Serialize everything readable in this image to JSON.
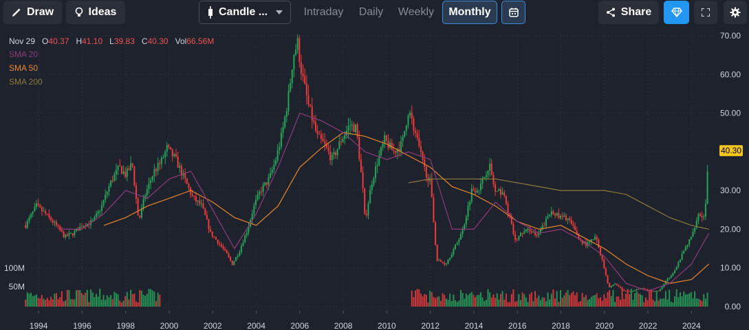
{
  "toolbar": {
    "draw_label": "Draw",
    "ideas_label": "Ideas",
    "chart_type_label": "Candle ...",
    "intervals": [
      "Intraday",
      "Daily",
      "Weekly",
      "Monthly"
    ],
    "active_interval": "Monthly",
    "share_label": "Share"
  },
  "ohlc": {
    "date": "Nov 29",
    "o_label": "O",
    "o": "40.37",
    "h_label": "H",
    "h": "41.10",
    "l_label": "L",
    "l": "39.83",
    "c_label": "C",
    "c": "40.30",
    "vol_label": "Vol",
    "vol": "66.56M"
  },
  "indicators": [
    {
      "name": "SMA 20",
      "color": "#8e3b7a"
    },
    {
      "name": "SMA 50",
      "color": "#e8862a"
    },
    {
      "name": "SMA 200",
      "color": "#8d7a3a"
    }
  ],
  "colors": {
    "background": "#1e222d",
    "up": "#26a65b",
    "down": "#ef3b3b",
    "last_price_tag": "#f5c518",
    "accent_blue": "#2196f3"
  },
  "chart_data": {
    "type": "candlestick",
    "interval": "monthly",
    "last_price": "40.30",
    "y_ticks": [
      "70.00",
      "60.00",
      "50.00",
      "40.00",
      "30.00",
      "20.00",
      "10.00",
      "0.00"
    ],
    "ylim": [
      0,
      70
    ],
    "volume_ticks": [
      "100M",
      "50M"
    ],
    "x_ticks": [
      "1994",
      "1996",
      "1998",
      "2000",
      "2002",
      "2004",
      "2006",
      "2008",
      "2010",
      "2012",
      "2014",
      "2016",
      "2018",
      "2020",
      "2022",
      "2024"
    ],
    "xlim": [
      1993.3,
      2025.0
    ],
    "gap": [
      1999.6,
      2011.1
    ],
    "grid": true,
    "price_path": [
      [
        1993.4,
        21
      ],
      [
        1993.9,
        26
      ],
      [
        1994.3,
        24
      ],
      [
        1994.8,
        21
      ],
      [
        1995.2,
        18
      ],
      [
        1995.6,
        19
      ],
      [
        1996.0,
        21
      ],
      [
        1996.5,
        22
      ],
      [
        1996.9,
        26
      ],
      [
        1997.3,
        32
      ],
      [
        1997.7,
        36
      ],
      [
        1998.0,
        34
      ],
      [
        1998.3,
        37
      ],
      [
        1998.6,
        22
      ],
      [
        1998.9,
        29
      ],
      [
        1999.3,
        35
      ],
      [
        1999.6,
        37
      ],
      [
        1999.9,
        41
      ],
      [
        2000.3,
        38
      ],
      [
        2000.7,
        33
      ],
      [
        2001.1,
        28
      ],
      [
        2001.5,
        26
      ],
      [
        2001.9,
        19
      ],
      [
        2002.2,
        17
      ],
      [
        2002.6,
        14
      ],
      [
        2002.9,
        11
      ],
      [
        2003.2,
        14
      ],
      [
        2003.6,
        20
      ],
      [
        2003.9,
        26
      ],
      [
        2004.2,
        30
      ],
      [
        2004.6,
        33
      ],
      [
        2004.9,
        38
      ],
      [
        2005.2,
        45
      ],
      [
        2005.5,
        55
      ],
      [
        2005.7,
        65
      ],
      [
        2005.9,
        68
      ],
      [
        2006.1,
        60
      ],
      [
        2006.4,
        52
      ],
      [
        2006.8,
        44
      ],
      [
        2007.1,
        42
      ],
      [
        2007.5,
        38
      ],
      [
        2007.9,
        43
      ],
      [
        2008.3,
        47
      ],
      [
        2008.6,
        46
      ],
      [
        2008.9,
        30
      ],
      [
        2009.0,
        22
      ],
      [
        2009.3,
        32
      ],
      [
        2009.6,
        38
      ],
      [
        2009.9,
        43
      ],
      [
        2010.3,
        40
      ],
      [
        2010.7,
        42
      ],
      [
        2011.0,
        51
      ],
      [
        2011.3,
        45
      ],
      [
        2011.7,
        36
      ],
      [
        2012.0,
        32
      ],
      [
        2012.3,
        12
      ],
      [
        2012.7,
        11
      ],
      [
        2013.1,
        15
      ],
      [
        2013.5,
        20
      ],
      [
        2013.9,
        30
      ],
      [
        2014.3,
        31
      ],
      [
        2014.7,
        37
      ],
      [
        2015.0,
        29
      ],
      [
        2015.3,
        30
      ],
      [
        2015.6,
        24
      ],
      [
        2015.9,
        17
      ],
      [
        2016.2,
        19
      ],
      [
        2016.6,
        20
      ],
      [
        2016.9,
        18
      ],
      [
        2017.3,
        22
      ],
      [
        2017.6,
        25
      ],
      [
        2017.9,
        23
      ],
      [
        2018.3,
        23
      ],
      [
        2018.6,
        20
      ],
      [
        2018.9,
        17
      ],
      [
        2019.2,
        16
      ],
      [
        2019.6,
        18
      ],
      [
        2019.9,
        12
      ],
      [
        2020.2,
        5
      ],
      [
        2020.5,
        6
      ],
      [
        2020.9,
        4
      ],
      [
        2021.3,
        4
      ],
      [
        2021.7,
        5
      ],
      [
        2022.1,
        4
      ],
      [
        2022.5,
        4
      ],
      [
        2022.9,
        7
      ],
      [
        2023.3,
        10
      ],
      [
        2023.7,
        15
      ],
      [
        2024.0,
        18
      ],
      [
        2024.3,
        24
      ],
      [
        2024.6,
        23
      ],
      [
        2024.8,
        40
      ]
    ],
    "sma_20": [
      [
        1995.0,
        20
      ],
      [
        1996.0,
        20
      ],
      [
        1997.0,
        24
      ],
      [
        1998.0,
        30
      ],
      [
        1999.0,
        28
      ],
      [
        2000.0,
        33
      ],
      [
        2001.0,
        35
      ],
      [
        2002.0,
        25
      ],
      [
        2003.0,
        15
      ],
      [
        2004.0,
        24
      ],
      [
        2005.0,
        36
      ],
      [
        2006.0,
        50
      ],
      [
        2007.0,
        48
      ],
      [
        2008.0,
        45
      ],
      [
        2009.0,
        40
      ],
      [
        2010.0,
        38
      ],
      [
        2011.0,
        40
      ],
      [
        2012.0,
        38
      ],
      [
        2013.0,
        20
      ],
      [
        2014.0,
        20
      ],
      [
        2015.0,
        27
      ],
      [
        2016.0,
        22
      ],
      [
        2017.0,
        19
      ],
      [
        2018.0,
        20
      ],
      [
        2019.0,
        17
      ],
      [
        2020.0,
        13
      ],
      [
        2021.0,
        6
      ],
      [
        2022.0,
        4
      ],
      [
        2023.0,
        6
      ],
      [
        2024.0,
        11
      ],
      [
        2024.8,
        19
      ]
    ],
    "sma_50": [
      [
        1997.0,
        21
      ],
      [
        1998.0,
        23
      ],
      [
        1999.0,
        26
      ],
      [
        2000.0,
        28
      ],
      [
        2001.0,
        30
      ],
      [
        2002.0,
        27
      ],
      [
        2003.0,
        23
      ],
      [
        2004.0,
        21
      ],
      [
        2005.0,
        26
      ],
      [
        2006.0,
        36
      ],
      [
        2007.0,
        41
      ],
      [
        2008.0,
        45
      ],
      [
        2009.0,
        44
      ],
      [
        2010.0,
        42
      ],
      [
        2011.0,
        39
      ],
      [
        2012.0,
        36
      ],
      [
        2013.0,
        31
      ],
      [
        2014.0,
        29
      ],
      [
        2015.0,
        26
      ],
      [
        2016.0,
        22
      ],
      [
        2017.0,
        20
      ],
      [
        2018.0,
        21
      ],
      [
        2019.0,
        18
      ],
      [
        2020.0,
        15
      ],
      [
        2021.0,
        11
      ],
      [
        2022.0,
        8
      ],
      [
        2023.0,
        6
      ],
      [
        2024.0,
        7
      ],
      [
        2024.8,
        11
      ]
    ],
    "sma_200": [
      [
        2011.0,
        32
      ],
      [
        2012.0,
        33
      ],
      [
        2013.0,
        33
      ],
      [
        2014.0,
        33
      ],
      [
        2015.0,
        33
      ],
      [
        2016.0,
        32
      ],
      [
        2017.0,
        31
      ],
      [
        2018.0,
        30
      ],
      [
        2019.0,
        30
      ],
      [
        2020.0,
        30
      ],
      [
        2021.0,
        29
      ],
      [
        2022.0,
        26
      ],
      [
        2023.0,
        23
      ],
      [
        2024.0,
        21
      ],
      [
        2024.8,
        20
      ]
    ]
  }
}
